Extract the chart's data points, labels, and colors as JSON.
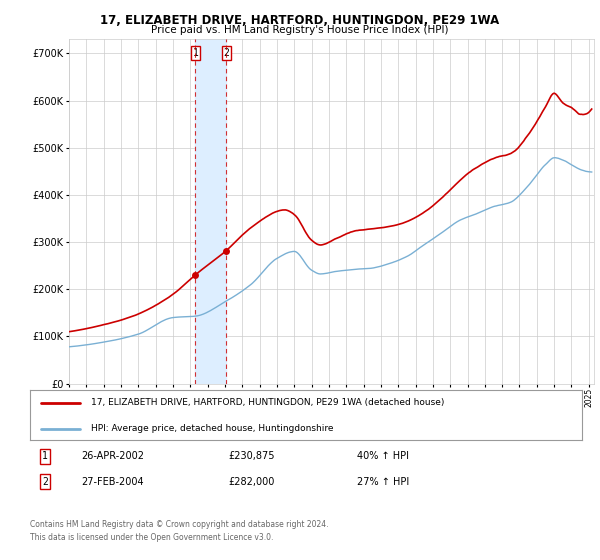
{
  "title": "17, ELIZABETH DRIVE, HARTFORD, HUNTINGDON, PE29 1WA",
  "subtitle": "Price paid vs. HM Land Registry's House Price Index (HPI)",
  "ytick_values": [
    0,
    100000,
    200000,
    300000,
    400000,
    500000,
    600000,
    700000
  ],
  "ylim": [
    0,
    730000
  ],
  "xlim_start": 1995.0,
  "xlim_end": 2025.3,
  "red_line_color": "#cc0000",
  "blue_line_color": "#7ab0d4",
  "shade_color": "#ddeeff",
  "transaction1_x": 2002.29,
  "transaction1_y": 230875,
  "transaction2_x": 2004.08,
  "transaction2_y": 282000,
  "legend_label_red": "17, ELIZABETH DRIVE, HARTFORD, HUNTINGDON, PE29 1WA (detached house)",
  "legend_label_blue": "HPI: Average price, detached house, Huntingdonshire",
  "table_row1": [
    "1",
    "26-APR-2002",
    "£230,875",
    "40% ↑ HPI"
  ],
  "table_row2": [
    "2",
    "27-FEB-2004",
    "£282,000",
    "27% ↑ HPI"
  ],
  "footnote1": "Contains HM Land Registry data © Crown copyright and database right 2024.",
  "footnote2": "This data is licensed under the Open Government Licence v3.0.",
  "background_color": "#ffffff",
  "grid_color": "#cccccc",
  "xtick_years": [
    1995,
    1996,
    1997,
    1998,
    1999,
    2000,
    2001,
    2002,
    2003,
    2004,
    2005,
    2006,
    2007,
    2008,
    2009,
    2010,
    2011,
    2012,
    2013,
    2014,
    2015,
    2016,
    2017,
    2018,
    2019,
    2020,
    2021,
    2022,
    2023,
    2024,
    2025
  ]
}
